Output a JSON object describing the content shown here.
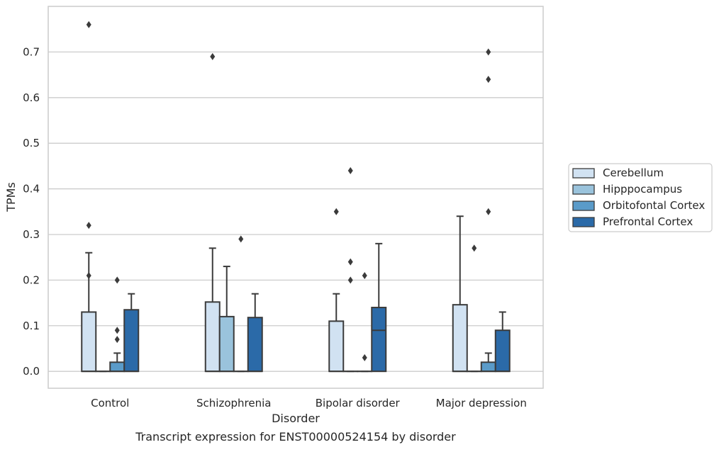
{
  "chart_data": {
    "type": "box",
    "xlabel": "Disorder",
    "ylabel": "TPMs",
    "caption": "Transcript expression for ENST00000524154 by disorder",
    "ylim": [
      -0.037,
      0.8
    ],
    "yticks": [
      "0.0",
      "0.1",
      "0.2",
      "0.3",
      "0.4",
      "0.5",
      "0.6",
      "0.7"
    ],
    "grid": "horizontal",
    "legend_position": "right",
    "categories": [
      "Control",
      "Schizophrenia",
      "Bipolar disorder",
      "Major depression"
    ],
    "series": [
      {
        "name": "Cerebellum",
        "color": "#d1e2f2",
        "boxes": [
          {
            "q1": 0.0,
            "median": 0.0,
            "q3": 0.13,
            "whisker_low": 0.0,
            "whisker_high": 0.26,
            "outliers": [
              0.76,
              0.32,
              0.21
            ]
          },
          {
            "q1": 0.0,
            "median": 0.0,
            "q3": 0.152,
            "whisker_low": 0.0,
            "whisker_high": 0.27,
            "outliers": [
              0.69
            ]
          },
          {
            "q1": 0.0,
            "median": 0.0,
            "q3": 0.11,
            "whisker_low": 0.0,
            "whisker_high": 0.17,
            "outliers": [
              0.35
            ]
          },
          {
            "q1": 0.0,
            "median": 0.0,
            "q3": 0.146,
            "whisker_low": 0.0,
            "whisker_high": 0.34,
            "outliers": []
          }
        ]
      },
      {
        "name": "Hipppocampus",
        "color": "#9ac3dc",
        "boxes": [
          {
            "q1": 0.0,
            "median": 0.0,
            "q3": 0.0,
            "whisker_low": 0.0,
            "whisker_high": 0.0,
            "outliers": []
          },
          {
            "q1": 0.0,
            "median": 0.0,
            "q3": 0.12,
            "whisker_low": 0.0,
            "whisker_high": 0.23,
            "outliers": []
          },
          {
            "q1": 0.0,
            "median": 0.0,
            "q3": 0.0,
            "whisker_low": 0.0,
            "whisker_high": 0.0,
            "outliers": [
              0.44,
              0.24,
              0.2
            ]
          },
          {
            "q1": 0.0,
            "median": 0.0,
            "q3": 0.0,
            "whisker_low": 0.0,
            "whisker_high": 0.0,
            "outliers": [
              0.27
            ]
          }
        ]
      },
      {
        "name": "Orbitofontal Cortex",
        "color": "#5a9bc9",
        "boxes": [
          {
            "q1": 0.0,
            "median": 0.0,
            "q3": 0.02,
            "whisker_low": 0.0,
            "whisker_high": 0.04,
            "outliers": [
              0.2,
              0.09,
              0.07
            ]
          },
          {
            "q1": 0.0,
            "median": 0.0,
            "q3": 0.0,
            "whisker_low": 0.0,
            "whisker_high": 0.0,
            "outliers": [
              0.29
            ]
          },
          {
            "q1": 0.0,
            "median": 0.0,
            "q3": 0.0,
            "whisker_low": 0.0,
            "whisker_high": 0.0,
            "outliers": [
              0.21,
              0.03
            ]
          },
          {
            "q1": 0.0,
            "median": 0.0,
            "q3": 0.02,
            "whisker_low": 0.0,
            "whisker_high": 0.04,
            "outliers": [
              0.7,
              0.64,
              0.35
            ]
          }
        ]
      },
      {
        "name": "Prefrontal Cortex",
        "color": "#2b6aa8",
        "boxes": [
          {
            "q1": 0.0,
            "median": 0.0,
            "q3": 0.135,
            "whisker_low": 0.0,
            "whisker_high": 0.17,
            "outliers": []
          },
          {
            "q1": 0.0,
            "median": 0.0,
            "q3": 0.118,
            "whisker_low": 0.0,
            "whisker_high": 0.17,
            "outliers": []
          },
          {
            "q1": 0.0,
            "median": 0.09,
            "q3": 0.14,
            "whisker_low": 0.0,
            "whisker_high": 0.28,
            "outliers": []
          },
          {
            "q1": 0.0,
            "median": 0.0,
            "q3": 0.09,
            "whisker_low": 0.0,
            "whisker_high": 0.13,
            "outliers": []
          }
        ]
      }
    ]
  }
}
